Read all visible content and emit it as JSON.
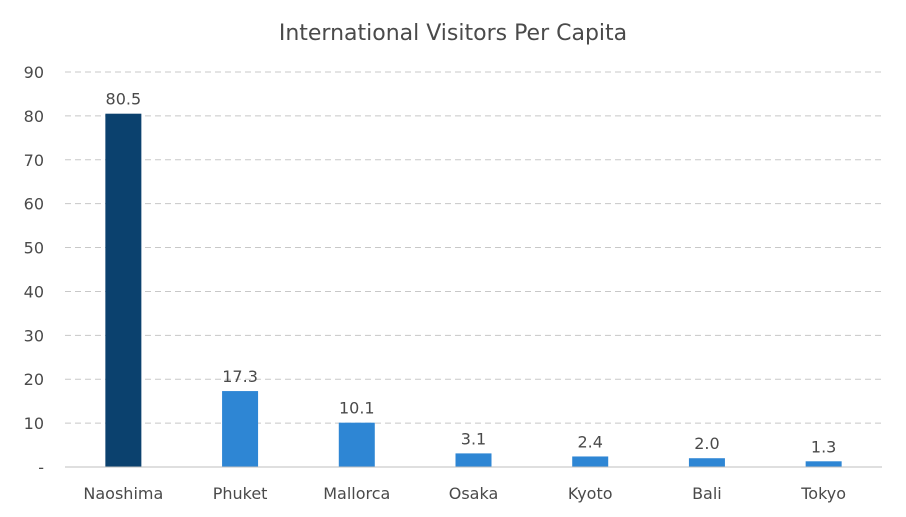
{
  "chart_data": {
    "type": "bar",
    "title": "International Visitors Per Capita",
    "xlabel": "",
    "ylabel": "",
    "categories": [
      "Naoshima",
      "Phuket",
      "Mallorca",
      "Osaka",
      "Kyoto",
      "Bali",
      "Tokyo"
    ],
    "values": [
      80.5,
      17.3,
      10.1,
      3.1,
      2.4,
      2.0,
      1.3
    ],
    "data_labels": [
      "80.5",
      "17.3",
      "10.1",
      "3.1",
      "2.4",
      "2.0",
      "1.3"
    ],
    "ylim": [
      0,
      90
    ],
    "yticks": [
      0,
      10,
      20,
      30,
      40,
      50,
      60,
      70,
      80,
      90
    ],
    "ytick_labels": [
      "-",
      "10",
      "20",
      "30",
      "40",
      "50",
      "60",
      "70",
      "80",
      "90"
    ],
    "grid": true,
    "legend": "none",
    "colors": {
      "highlight": "#0b416e",
      "default": "#2e86d4"
    },
    "highlight_index": 0
  }
}
